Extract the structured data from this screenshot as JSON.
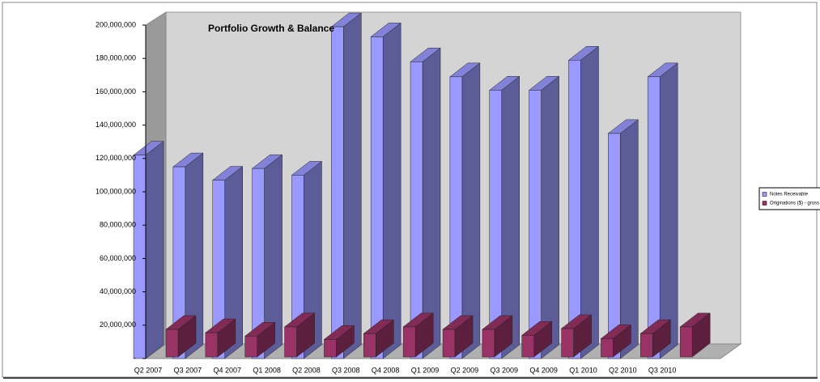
{
  "chart_data": {
    "type": "bar3d",
    "title": "Portfolio Growth & Balance",
    "categories": [
      "Q2 2007",
      "Q3 2007",
      "Q4 2007",
      "Q1 2008",
      "Q2 2008",
      "Q3 2008",
      "Q4 2008",
      "Q1 2009",
      "Q2 2009",
      "Q3 2009",
      "Q4 2009",
      "Q1 2010",
      "Q2 2010",
      "Q3 2010"
    ],
    "series": [
      {
        "name": "Notes Receivable",
        "color": "#9999ff",
        "values": [
          122000000,
          115000000,
          107000000,
          114000000,
          110000000,
          199000000,
          193000000,
          178000000,
          169000000,
          161000000,
          161000000,
          179000000,
          135000000,
          169000000
        ]
      },
      {
        "name": "Originations ($) - gross",
        "color": "#993366",
        "values": [
          16500000,
          14500000,
          12500000,
          18000000,
          10500000,
          14000000,
          18000000,
          16500000,
          16500000,
          13000000,
          17000000,
          11000000,
          14000000,
          18000000
        ]
      }
    ],
    "ylim": [
      0,
      200000000
    ],
    "yticks": [
      {
        "value": 0,
        "label": "-"
      },
      {
        "value": 20000000,
        "label": "20,000,000"
      },
      {
        "value": 40000000,
        "label": "40,000,000"
      },
      {
        "value": 60000000,
        "label": "60,000,000"
      },
      {
        "value": 80000000,
        "label": "80,000,000"
      },
      {
        "value": 100000000,
        "label": "100,000,000"
      },
      {
        "value": 120000000,
        "label": "120,000,000"
      },
      {
        "value": 140000000,
        "label": "140,000,000"
      },
      {
        "value": 160000000,
        "label": "160,000,000"
      },
      {
        "value": 180000000,
        "label": "180,000,000"
      },
      {
        "value": 200000000,
        "label": "200,000,000"
      }
    ],
    "legend": "right"
  }
}
